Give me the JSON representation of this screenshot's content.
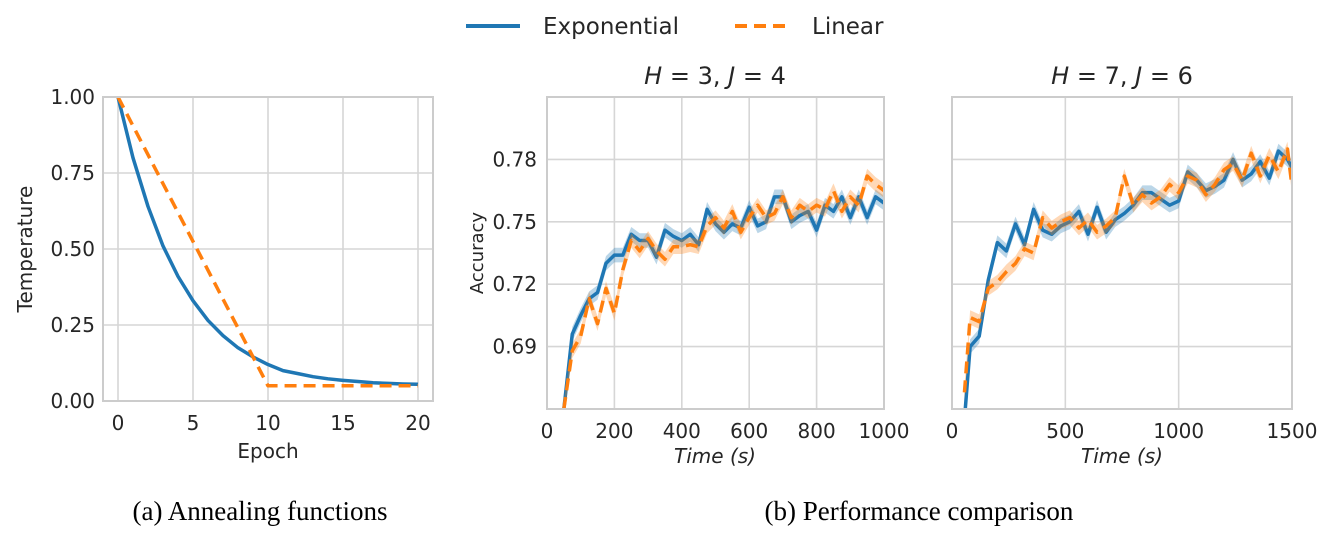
{
  "legend": {
    "exponential": {
      "label": "Exponential",
      "color": "#1f77b4"
    },
    "linear": {
      "label": "Linear",
      "color": "#ff7f0e"
    }
  },
  "captions": {
    "a": "(a) Annealing functions",
    "b": "(b) Performance comparison"
  },
  "chart_data": [
    {
      "type": "line",
      "id": "annealing",
      "title": "",
      "xlabel": "Epoch",
      "ylabel": "Temperature",
      "xlim": [
        -1,
        21
      ],
      "ylim": [
        0,
        1.0
      ],
      "xticks": [
        0,
        5,
        10,
        15,
        20
      ],
      "xtick_labels": [
        "0",
        "5",
        "10",
        "15",
        "20"
      ],
      "yticks": [
        0,
        0.25,
        0.5,
        0.75,
        1.0
      ],
      "ytick_labels": [
        "0.00",
        "0.25",
        "0.50",
        "0.75",
        "1.00"
      ],
      "series": [
        {
          "name": "Exponential",
          "x": [
            0,
            1,
            2,
            3,
            4,
            5,
            6,
            7,
            8,
            9,
            10,
            11,
            12,
            13,
            14,
            15,
            16,
            17,
            18,
            19,
            20
          ],
          "y": [
            1.0,
            0.8,
            0.64,
            0.51,
            0.41,
            0.33,
            0.265,
            0.215,
            0.175,
            0.145,
            0.12,
            0.1,
            0.09,
            0.08,
            0.073,
            0.068,
            0.064,
            0.06,
            0.058,
            0.056,
            0.055
          ]
        },
        {
          "name": "Linear",
          "x": [
            0,
            10,
            20
          ],
          "y": [
            1.0,
            0.05,
            0.05
          ]
        }
      ]
    },
    {
      "type": "line",
      "id": "perf_h3",
      "title": "H = 3, J = 4",
      "title_parts": {
        "h_label": "H",
        "h_value": "3",
        "j_label": "J",
        "j_value": "4"
      },
      "xlabel": "Time (s)",
      "xlabel_parts": {
        "word": "Time",
        "unit": "(s)"
      },
      "ylabel": "Accuracy",
      "xlim": [
        0,
        1000
      ],
      "ylim": [
        0.66,
        0.81
      ],
      "xticks": [
        0,
        200,
        400,
        600,
        800,
        1000
      ],
      "xtick_labels": [
        "0",
        "200",
        "400",
        "600",
        "800",
        "1000"
      ],
      "yticks": [
        0.69,
        0.72,
        0.75,
        0.78
      ],
      "ytick_labels": [
        "0.69",
        "0.72",
        "0.75",
        "0.78"
      ],
      "series": [
        {
          "name": "Exponential",
          "x": [
            50,
            75,
            100,
            125,
            150,
            175,
            200,
            225,
            250,
            275,
            300,
            325,
            350,
            375,
            400,
            425,
            450,
            475,
            500,
            525,
            550,
            575,
            600,
            625,
            650,
            675,
            700,
            725,
            750,
            775,
            800,
            825,
            850,
            875,
            900,
            925,
            950,
            975,
            1000
          ],
          "y": [
            0.66,
            0.696,
            0.705,
            0.713,
            0.716,
            0.73,
            0.734,
            0.734,
            0.744,
            0.741,
            0.741,
            0.733,
            0.746,
            0.743,
            0.741,
            0.744,
            0.739,
            0.756,
            0.749,
            0.745,
            0.749,
            0.747,
            0.757,
            0.748,
            0.75,
            0.762,
            0.762,
            0.75,
            0.753,
            0.755,
            0.746,
            0.758,
            0.755,
            0.762,
            0.752,
            0.762,
            0.752,
            0.762,
            0.759
          ],
          "band": 0.0035
        },
        {
          "name": "Linear",
          "x": [
            50,
            75,
            100,
            125,
            150,
            175,
            200,
            225,
            250,
            275,
            300,
            325,
            350,
            375,
            400,
            425,
            450,
            475,
            500,
            525,
            550,
            575,
            600,
            625,
            650,
            675,
            700,
            725,
            750,
            775,
            800,
            825,
            850,
            875,
            900,
            925,
            950,
            975,
            1000
          ],
          "y": [
            0.66,
            0.688,
            0.695,
            0.713,
            0.701,
            0.718,
            0.706,
            0.727,
            0.741,
            0.736,
            0.742,
            0.736,
            0.732,
            0.738,
            0.738,
            0.739,
            0.738,
            0.748,
            0.752,
            0.747,
            0.755,
            0.745,
            0.752,
            0.758,
            0.752,
            0.754,
            0.762,
            0.752,
            0.758,
            0.755,
            0.758,
            0.756,
            0.765,
            0.755,
            0.762,
            0.758,
            0.772,
            0.768,
            0.765
          ],
          "band": 0.0035
        }
      ]
    },
    {
      "type": "line",
      "id": "perf_h7",
      "title": "H = 7, J = 6",
      "title_parts": {
        "h_label": "H",
        "h_value": "7",
        "j_label": "J",
        "j_value": "6"
      },
      "xlabel": "Time (s)",
      "xlabel_parts": {
        "word": "Time",
        "unit": "(s)"
      },
      "ylabel": "",
      "xlim": [
        0,
        1500
      ],
      "ylim": [
        0.66,
        0.81
      ],
      "xticks": [
        0,
        500,
        1000,
        1500
      ],
      "xtick_labels": [
        "0",
        "500",
        "1000",
        "1500"
      ],
      "series": [
        {
          "name": "Exponential",
          "x": [
            55,
            80,
            120,
            160,
            200,
            240,
            280,
            320,
            360,
            400,
            440,
            480,
            520,
            560,
            600,
            640,
            680,
            720,
            760,
            800,
            840,
            880,
            920,
            960,
            1000,
            1040,
            1080,
            1120,
            1160,
            1200,
            1240,
            1280,
            1320,
            1360,
            1400,
            1440,
            1480,
            1500
          ],
          "y": [
            0.655,
            0.69,
            0.695,
            0.722,
            0.74,
            0.736,
            0.749,
            0.739,
            0.756,
            0.746,
            0.744,
            0.748,
            0.75,
            0.755,
            0.744,
            0.757,
            0.745,
            0.751,
            0.754,
            0.758,
            0.764,
            0.764,
            0.761,
            0.758,
            0.76,
            0.774,
            0.77,
            0.765,
            0.767,
            0.77,
            0.78,
            0.77,
            0.773,
            0.779,
            0.771,
            0.784,
            0.78,
            0.776
          ],
          "band": 0.0035
        },
        {
          "name": "Linear",
          "x": [
            55,
            80,
            120,
            160,
            200,
            240,
            280,
            320,
            360,
            400,
            440,
            480,
            520,
            560,
            600,
            640,
            680,
            720,
            760,
            800,
            840,
            880,
            920,
            960,
            1000,
            1040,
            1080,
            1120,
            1160,
            1200,
            1240,
            1280,
            1320,
            1360,
            1400,
            1440,
            1480,
            1500
          ],
          "y": [
            0.668,
            0.704,
            0.702,
            0.718,
            0.721,
            0.726,
            0.73,
            0.737,
            0.735,
            0.752,
            0.747,
            0.75,
            0.752,
            0.747,
            0.751,
            0.745,
            0.748,
            0.752,
            0.772,
            0.758,
            0.763,
            0.759,
            0.762,
            0.768,
            0.764,
            0.772,
            0.77,
            0.763,
            0.768,
            0.775,
            0.778,
            0.77,
            0.783,
            0.772,
            0.782,
            0.774,
            0.785,
            0.767
          ],
          "band": 0.0035
        }
      ]
    }
  ]
}
